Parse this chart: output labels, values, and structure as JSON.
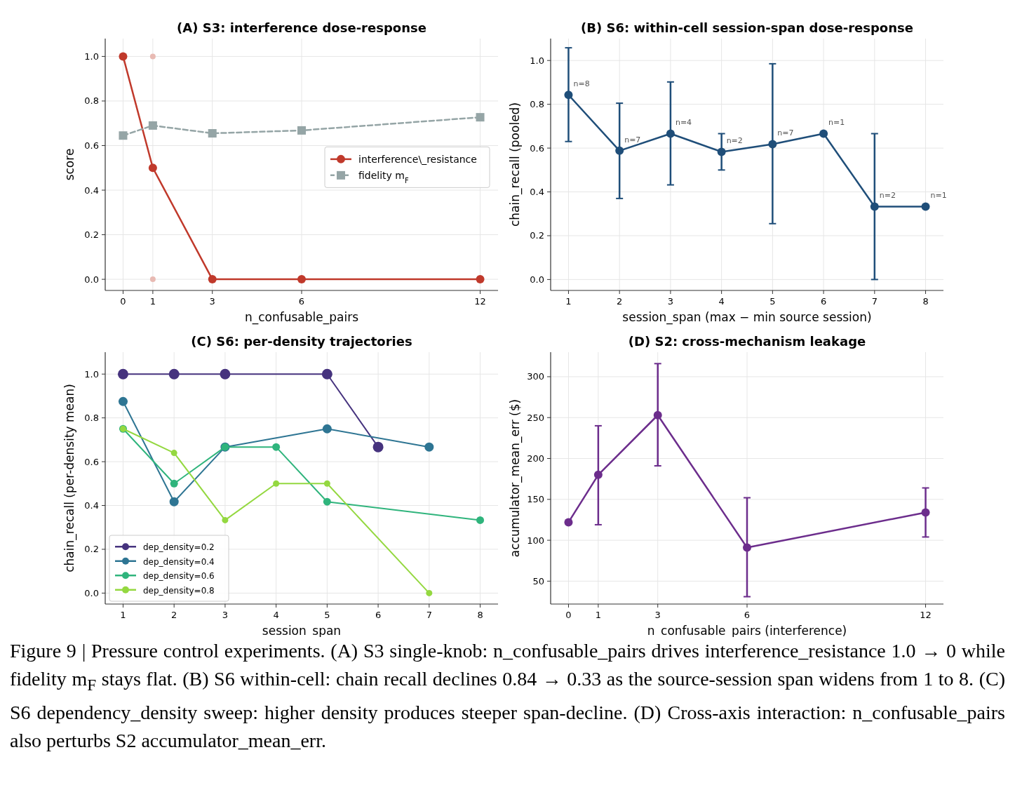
{
  "chart_data": [
    {
      "type": "line",
      "title": "(A) S3: interference dose-response",
      "xlabel": "n_confusable_pairs",
      "ylabel": "score",
      "xlim": [
        -0.6,
        12.6
      ],
      "ylim": [
        -0.05,
        1.08
      ],
      "xticks": [
        0,
        1,
        3,
        6,
        12
      ],
      "yticks": [
        {
          "value": 0,
          "label": "0.0"
        },
        {
          "value": 0.2,
          "label": "0.2"
        },
        {
          "value": 0.4,
          "label": "0.4"
        },
        {
          "value": 0.6,
          "label": "0.6"
        },
        {
          "value": 0.8,
          "label": "0.8"
        },
        {
          "value": 1,
          "label": "1.0"
        }
      ],
      "grid": true,
      "legend": "right",
      "x": [
        0,
        1,
        3,
        6,
        12
      ],
      "series": [
        {
          "name": "interference\\_resistance",
          "color": "#c0392b",
          "values": [
            1.0,
            0.5,
            0,
            0,
            0
          ],
          "marker": "circle",
          "line_style": "solid"
        },
        {
          "name": "fidelity m$_{F}$",
          "color": "#95a5a6",
          "values": [
            0.645,
            0.69,
            0.655,
            0.668,
            0.727
          ],
          "marker": "square",
          "line_style": "dashed"
        },
        {
          "type": "scatter",
          "color": "#e8bab3",
          "x": [
            1,
            1
          ],
          "values": [
            1.0,
            0.0
          ],
          "marker": "circle"
        }
      ],
      "annotations": [
        "Figure 9 | Pressure control experiments. (A) S3 single-knob: n_confusable_pairs drives interference_resistance 1.0 → 0 while fidelity m$_{F}$ stays flat. (B) S6 within-cell: chain recall declines 0.84 → 0.33 as the source-session span widens from 1 to 8. (C) S6 dependency_density sweep: higher density produces steeper span-decline. (D) Cross-axis interaction: n_confusable_pairs also perturbs S2 accumulator_mean_err."
      ]
    },
    {
      "type": "line",
      "title": "(B) S6: within-cell session-span dose-response",
      "xlabel": "session_span (max − min source session)",
      "ylabel": "chain_recall (pooled)",
      "xlim": [
        0.65,
        8.35
      ],
      "ylim": [
        -0.05,
        1.1
      ],
      "xticks": [
        1,
        2,
        3,
        4,
        5,
        6,
        7,
        8
      ],
      "yticks": [
        {
          "value": 0,
          "label": "0.0"
        },
        {
          "value": 0.2,
          "label": "0.2"
        },
        {
          "value": 0.4,
          "label": "0.4"
        },
        {
          "value": 0.6,
          "label": "0.6"
        },
        {
          "value": 0.8,
          "label": "0.8"
        },
        {
          "value": 1,
          "label": "1.0"
        }
      ],
      "grid": true,
      "x": [
        1,
        2,
        3,
        4,
        5,
        6,
        7,
        8
      ],
      "series": [
        {
          "color": "#1f4e79",
          "values": [
            0.843,
            0.588,
            0.666,
            0.583,
            0.618,
            0.666,
            0.333,
            0.333
          ],
          "marker": "circle",
          "line_style": "solid",
          "errors": [
            [
              0.63,
              1.058
            ],
            [
              0.37,
              0.805
            ],
            [
              0.432,
              0.902
            ],
            [
              0.5,
              0.666
            ],
            [
              0.255,
              0.985
            ],
            null,
            [
              0,
              0.666
            ],
            null
          ]
        }
      ],
      "annotations": [
        {
          "text": "n=8",
          "x": 1,
          "y": 0.843
        },
        {
          "text": "n=7",
          "x": 2,
          "y": 0.588
        },
        {
          "text": "n=4",
          "x": 3,
          "y": 0.666
        },
        {
          "text": "n=2",
          "x": 4,
          "y": 0.583
        },
        {
          "text": "n=7",
          "x": 5,
          "y": 0.618
        },
        {
          "text": "n=1",
          "x": 6,
          "y": 0.666
        },
        {
          "text": "n=2",
          "x": 7,
          "y": 0.333
        },
        {
          "text": "n=1",
          "x": 8,
          "y": 0.333
        }
      ]
    },
    {
      "type": "line",
      "title": "(C) S6: per-density trajectories",
      "xlabel": "session_span",
      "ylabel": "chain_recall (per-density mean)",
      "xlim": [
        0.65,
        8.35
      ],
      "ylim": [
        -0.05,
        1.1
      ],
      "xticks": [
        1,
        2,
        3,
        4,
        5,
        6,
        7,
        8
      ],
      "yticks": [
        {
          "value": 0,
          "label": "0.0"
        },
        {
          "value": 0.2,
          "label": "0.2"
        },
        {
          "value": 0.4,
          "label": "0.4"
        },
        {
          "value": 0.6,
          "label": "0.6"
        },
        {
          "value": 0.8,
          "label": "0.8"
        },
        {
          "value": 1,
          "label": "1.0"
        }
      ],
      "grid": true,
      "legend": "bottom left",
      "series": [
        {
          "name": "dep_density=0.2",
          "color": "#46337e",
          "x": [
            1,
            2,
            3,
            5,
            6
          ],
          "values": [
            1.0,
            1.0,
            1.0,
            1.0,
            0.667
          ],
          "marker": "circle"
        },
        {
          "name": "dep_density=0.4",
          "color": "#2e7593",
          "x": [
            1,
            2,
            3,
            5,
            7
          ],
          "values": [
            0.875,
            0.417,
            0.667,
            0.75,
            0.667
          ],
          "marker": "circle"
        },
        {
          "name": "dep_density=0.6",
          "color": "#2fb47c",
          "x": [
            1,
            2,
            3,
            4,
            5,
            8
          ],
          "values": [
            0.75,
            0.5,
            0.667,
            0.667,
            0.417,
            0.333
          ],
          "marker": "circle"
        },
        {
          "name": "dep_density=0.8",
          "color": "#94d840",
          "x": [
            1,
            2,
            3,
            4,
            5,
            7
          ],
          "values": [
            0.75,
            0.64,
            0.333,
            0.5,
            0.5,
            0.0
          ],
          "marker": "circle"
        }
      ]
    },
    {
      "type": "line",
      "title": "(D) S2: cross-mechanism leakage",
      "xlabel": "n_confusable_pairs (interference)",
      "ylabel": "accumulator_mean_err ($)",
      "xlim": [
        -0.6,
        12.6
      ],
      "ylim": [
        22,
        330
      ],
      "xticks": [
        0,
        1,
        3,
        6,
        12
      ],
      "yticks": [
        50,
        100,
        150,
        200,
        250,
        300
      ],
      "grid": true,
      "x": [
        0,
        1,
        3,
        6,
        12
      ],
      "series": [
        {
          "color": "#6c2d8c",
          "values": [
            122,
            180,
            253,
            91,
            134
          ],
          "marker": "circle",
          "line_style": "solid",
          "errors": [
            null,
            [
              119,
              240
            ],
            [
              191,
              316
            ],
            [
              31,
              152
            ],
            [
              104,
              164
            ]
          ]
        }
      ]
    }
  ]
}
